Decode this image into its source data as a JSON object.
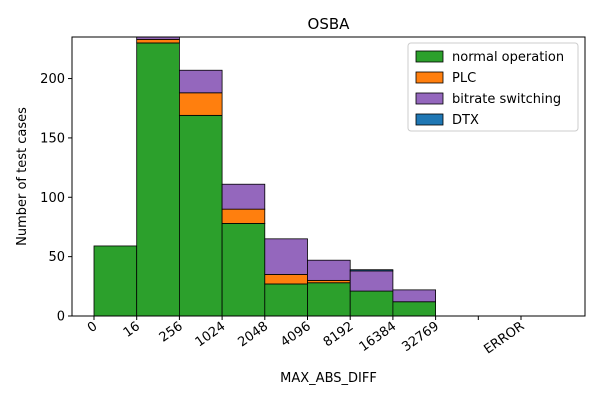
{
  "chart_data": {
    "type": "bar",
    "stacked": true,
    "title": "OSBA",
    "xlabel": "MAX_ABS_DIFF",
    "ylabel": "Number of test cases",
    "ylim": [
      0,
      235
    ],
    "yticks": [
      0,
      50,
      100,
      150,
      200
    ],
    "xtick_labels": [
      "0",
      "16",
      "256",
      "1024",
      "2048",
      "4096",
      "8192",
      "16384",
      "32769",
      "",
      "ERROR"
    ],
    "bins": [
      "0-16",
      "16-256",
      "256-1024",
      "1024-2048",
      "2048-4096",
      "4096-8192",
      "8192-16384",
      "16384-32769",
      "32769-",
      "",
      "ERROR"
    ],
    "series": [
      {
        "name": "normal operation",
        "color": "#2ca02c",
        "values": [
          59,
          230,
          169,
          78,
          27,
          28,
          21,
          12,
          0,
          0,
          0
        ]
      },
      {
        "name": "PLC",
        "color": "#ff7f0e",
        "values": [
          0,
          3,
          19,
          12,
          8,
          2,
          0,
          0,
          0,
          0,
          0
        ]
      },
      {
        "name": "bitrate switching",
        "color": "#9467bd",
        "values": [
          0,
          2,
          19,
          21,
          30,
          17,
          17,
          10,
          0,
          0,
          0
        ]
      },
      {
        "name": "DTX",
        "color": "#1f77b4",
        "values": [
          0,
          0,
          0,
          0,
          0,
          0,
          1,
          0,
          0,
          0,
          0
        ]
      }
    ],
    "legend_position": "top-right",
    "grid": false
  }
}
